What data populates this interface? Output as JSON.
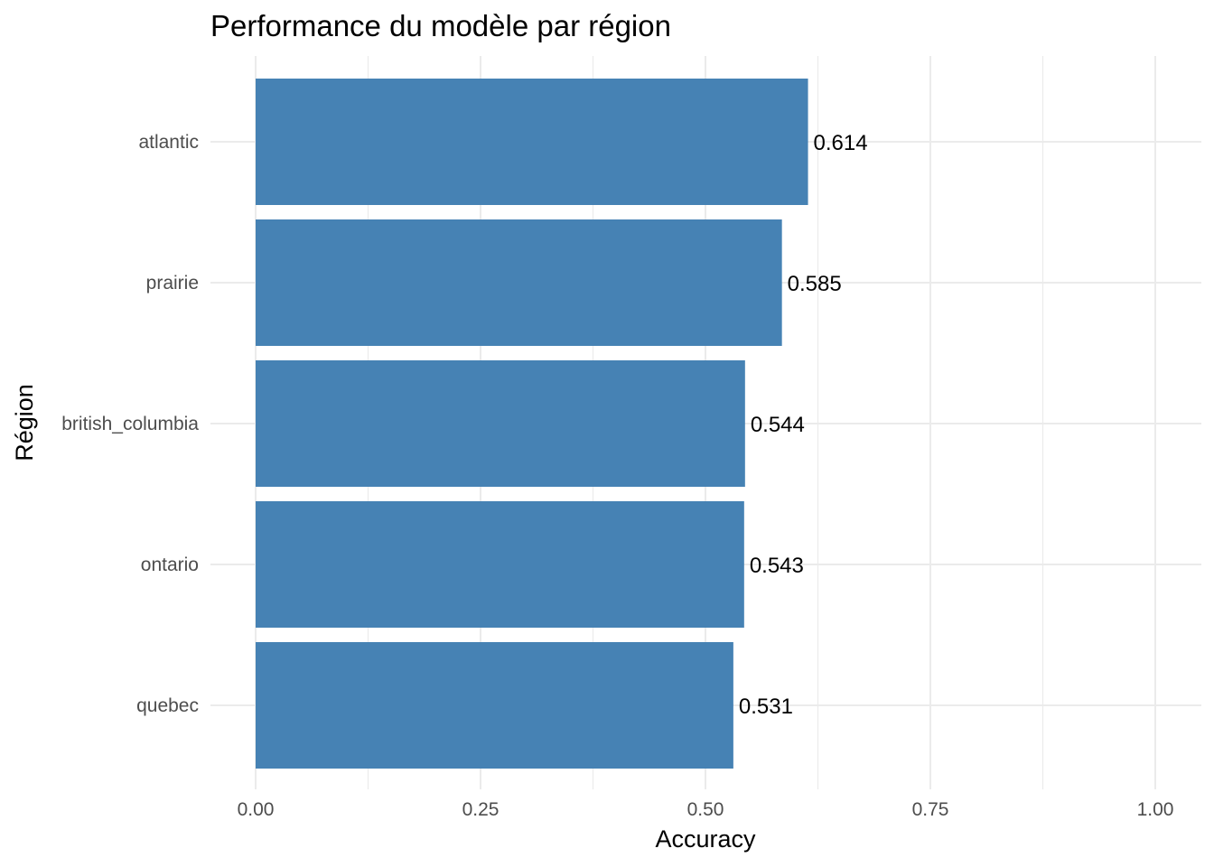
{
  "chart_data": {
    "type": "bar",
    "orientation": "horizontal",
    "title": "Performance du modèle par région",
    "xlabel": "Accuracy",
    "ylabel": "Région",
    "categories": [
      "atlantic",
      "prairie",
      "british_columbia",
      "ontario",
      "quebec"
    ],
    "values": [
      0.614,
      0.585,
      0.544,
      0.543,
      0.531
    ],
    "data_labels": [
      "0.614",
      "0.585",
      "0.544",
      "0.543",
      "0.531"
    ],
    "xlim": [
      0,
      1.0
    ],
    "x_ticks": [
      0,
      0.25,
      0.5,
      0.75,
      1.0
    ],
    "x_tick_labels": [
      "0.00",
      "0.25",
      "0.50",
      "0.75",
      "1.00"
    ],
    "grid": true,
    "bar_color": "#4682b4"
  }
}
